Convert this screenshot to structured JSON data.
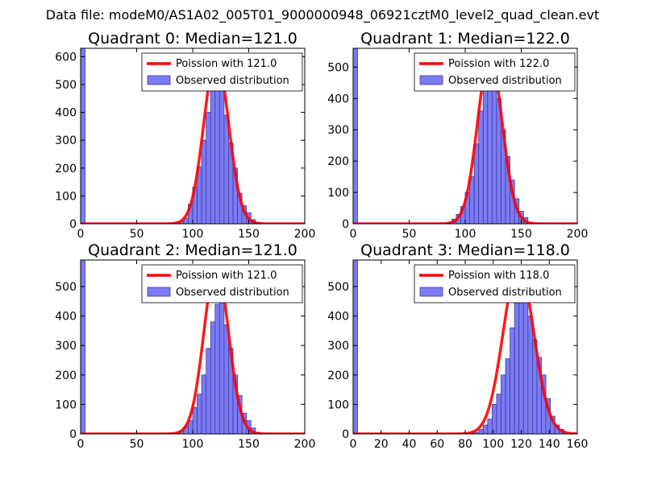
{
  "figure_title": "Data file: modeM0/AS1A02_005T01_9000000948_06921cztM0_level2_quad_clean.evt",
  "colors": {
    "bar_fill": "#7b7bf5",
    "bar_edge": "#3c3c99",
    "curve": "#ff0000",
    "axis": "#000000"
  },
  "chart_data": [
    {
      "type": "bar",
      "title": "Quadrant 0: Median=121.0",
      "median": 121.0,
      "xlim": [
        0,
        200
      ],
      "ylim": [
        0,
        630
      ],
      "xticks": [
        0,
        50,
        100,
        150,
        200
      ],
      "yticks": [
        0,
        100,
        200,
        300,
        400,
        500,
        600
      ],
      "bin_width": 4,
      "legend": [
        "Poission with 121.0",
        "Observed distribution"
      ],
      "bins_x": [
        0,
        84,
        88,
        92,
        96,
        100,
        104,
        108,
        112,
        116,
        120,
        124,
        128,
        132,
        136,
        140,
        144,
        148,
        152,
        156
      ],
      "counts": [
        630,
        3,
        8,
        20,
        70,
        132,
        205,
        300,
        400,
        510,
        590,
        510,
        390,
        290,
        200,
        110,
        65,
        40,
        15,
        5
      ],
      "curve_peak": 600,
      "curve_sigma": 11
    },
    {
      "type": "bar",
      "title": "Quadrant 1: Median=122.0",
      "median": 122.0,
      "xlim": [
        0,
        200
      ],
      "ylim": [
        0,
        560
      ],
      "xticks": [
        0,
        50,
        100,
        150,
        200
      ],
      "yticks": [
        0,
        100,
        200,
        300,
        400,
        500
      ],
      "bin_width": 4,
      "legend": [
        "Poission with 122.0",
        "Observed distribution"
      ],
      "bins_x": [
        0,
        84,
        88,
        92,
        96,
        100,
        104,
        108,
        112,
        116,
        120,
        124,
        128,
        132,
        136,
        140,
        144,
        148,
        152,
        156
      ],
      "counts": [
        560,
        5,
        15,
        30,
        55,
        100,
        150,
        255,
        360,
        455,
        520,
        490,
        400,
        300,
        215,
        140,
        80,
        40,
        20,
        5
      ],
      "curve_peak": 535,
      "curve_sigma": 11
    },
    {
      "type": "bar",
      "title": "Quadrant 2: Median=121.0",
      "median": 121.0,
      "xlim": [
        0,
        200
      ],
      "ylim": [
        0,
        590
      ],
      "xticks": [
        0,
        50,
        100,
        150,
        200
      ],
      "yticks": [
        0,
        100,
        200,
        300,
        400,
        500
      ],
      "bin_width": 4,
      "legend": [
        "Poission with 121.0",
        "Observed distribution"
      ],
      "bins_x": [
        0,
        84,
        88,
        92,
        96,
        100,
        104,
        108,
        112,
        116,
        120,
        124,
        128,
        132,
        136,
        140,
        144,
        148,
        152,
        156
      ],
      "counts": [
        590,
        3,
        10,
        25,
        45,
        90,
        135,
        200,
        290,
        380,
        440,
        470,
        370,
        290,
        200,
        130,
        70,
        45,
        20,
        5
      ],
      "curve_peak": 570,
      "curve_sigma": 11
    },
    {
      "type": "bar",
      "title": "Quadrant 3: Median=118.0",
      "median": 118.0,
      "xlim": [
        0,
        160
      ],
      "ylim": [
        0,
        590
      ],
      "xticks": [
        0,
        20,
        40,
        60,
        80,
        100,
        120,
        140,
        160
      ],
      "yticks": [
        0,
        100,
        200,
        300,
        400,
        500
      ],
      "bin_width": 3.2,
      "legend": [
        "Poission with 118.0",
        "Observed distribution"
      ],
      "bins_x": [
        0,
        83.2,
        86.4,
        89.6,
        92.8,
        96,
        99.2,
        102.4,
        105.6,
        108.8,
        112,
        115.2,
        118.4,
        121.6,
        124.8,
        128,
        131.2,
        134.4,
        137.6,
        140.8,
        144,
        147.2
      ],
      "counts": [
        590,
        3,
        5,
        15,
        30,
        50,
        100,
        135,
        200,
        255,
        360,
        480,
        490,
        450,
        400,
        320,
        260,
        200,
        120,
        60,
        30,
        15
      ],
      "curve_peak": 570,
      "curve_sigma": 10.9
    }
  ]
}
